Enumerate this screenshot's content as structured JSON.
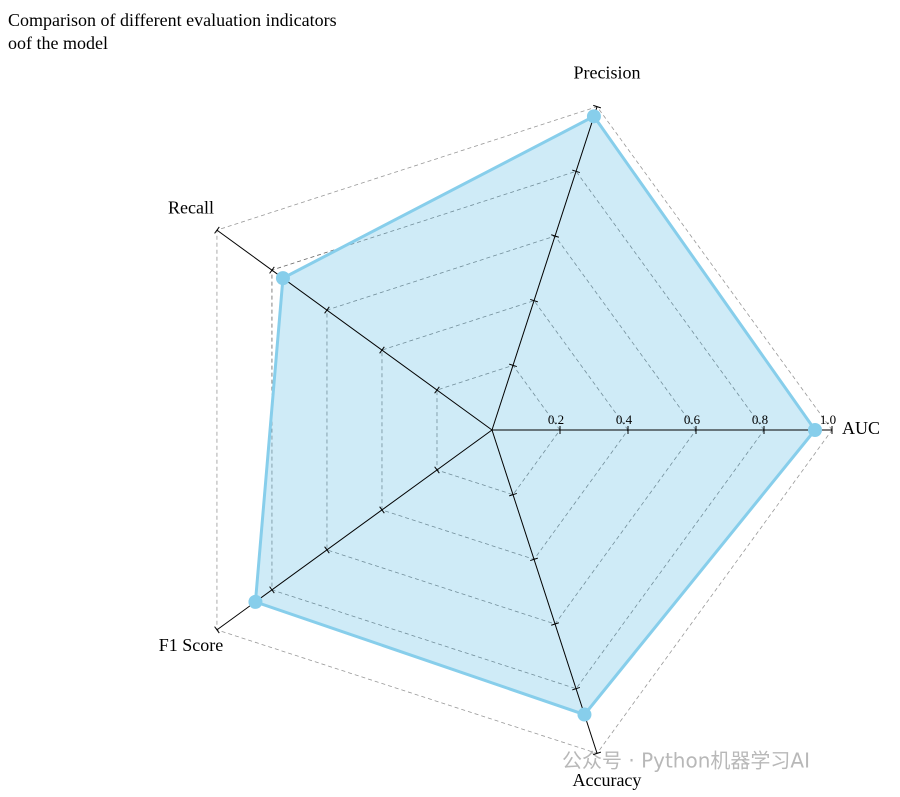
{
  "chart_data": {
    "type": "radar",
    "title": [
      "Comparison of different evaluation indicators",
      "oof the model"
    ],
    "categories": [
      "AUC",
      "Precision",
      "Recall",
      "F1 Score",
      "Accuracy"
    ],
    "values": [
      0.95,
      0.97,
      0.76,
      0.86,
      0.88
    ],
    "color": "#87CEEB",
    "rlim": [
      0,
      1
    ],
    "rticks": [
      0.2,
      0.4,
      0.6,
      0.8,
      {
        "value": 1,
        "label": "1.0"
      }
    ],
    "grid": true,
    "watermark": "公众号 · Python机器学习AI"
  }
}
